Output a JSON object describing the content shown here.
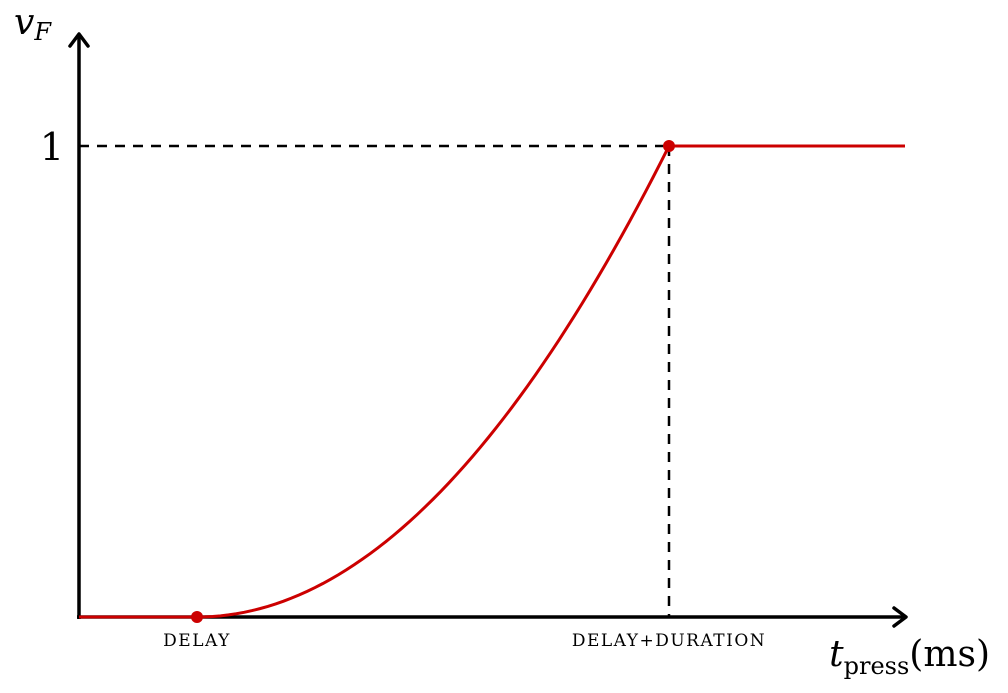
{
  "chart_data": {
    "type": "line",
    "ylabel": {
      "main": "v",
      "sub": "F"
    },
    "xlabel": {
      "main": "t",
      "sub": "press",
      "unit": "(ms)"
    },
    "y_ticks": [
      "1"
    ],
    "x_ticks": [
      "DELAY",
      "DELAY+DURATION"
    ],
    "ylim": [
      0,
      1
    ],
    "x_markers": {
      "delay": 0.2,
      "delay_plus_duration": 1.0,
      "end": 1.4
    },
    "series": [
      {
        "color": "#cc0000",
        "segments": [
          {
            "shape": "constant",
            "from_x": 0.0,
            "to_x": 0.2,
            "y": 0
          },
          {
            "shape": "quadratic-ease-in",
            "from_x": 0.2,
            "to_x": 1.0,
            "from_y": 0,
            "to_y": 1
          },
          {
            "shape": "constant",
            "from_x": 1.0,
            "to_x": 1.4,
            "y": 1
          }
        ],
        "points": [
          {
            "x": 0.2,
            "y": 0
          },
          {
            "x": 1.0,
            "y": 1
          }
        ]
      }
    ],
    "guides": "dashed",
    "grid": false,
    "legend": "none"
  },
  "colors": {
    "axis": "#000000",
    "curve": "#cc0000",
    "guide": "#000000"
  }
}
